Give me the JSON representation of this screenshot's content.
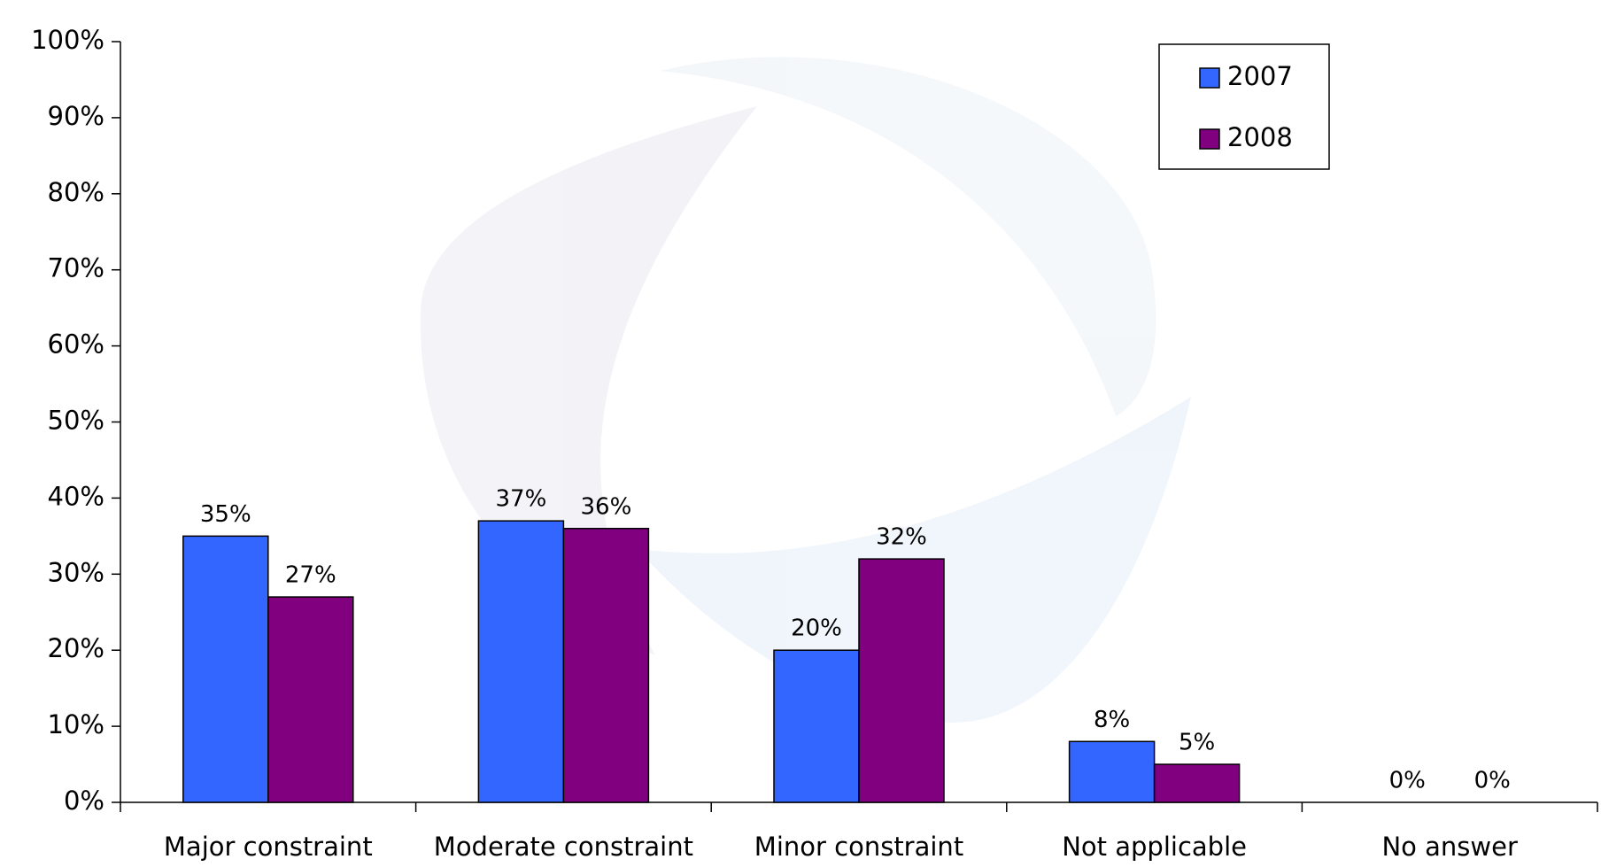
{
  "chart_data": {
    "type": "bar",
    "categories": [
      "Major constraint",
      "Moderate constraint",
      "Minor constraint",
      "Not applicable",
      "No answer"
    ],
    "series": [
      {
        "name": "2007",
        "color": "#3366ff",
        "values": [
          35,
          37,
          20,
          8,
          0
        ],
        "value_labels": [
          "35%",
          "37%",
          "20%",
          "8%",
          "0%"
        ]
      },
      {
        "name": "2008",
        "color": "#800080",
        "values": [
          27,
          36,
          32,
          5,
          0
        ],
        "value_labels": [
          "27%",
          "36%",
          "32%",
          "5%",
          "0%"
        ]
      }
    ],
    "ylim": [
      0,
      100
    ],
    "yticks": [
      {
        "value": 0,
        "label": "0%"
      },
      {
        "value": 10,
        "label": "10%"
      },
      {
        "value": 20,
        "label": "20%"
      },
      {
        "value": 30,
        "label": "30%"
      },
      {
        "value": 40,
        "label": "40%"
      },
      {
        "value": 50,
        "label": "50%"
      },
      {
        "value": 60,
        "label": "60%"
      },
      {
        "value": 70,
        "label": "70%"
      },
      {
        "value": 80,
        "label": "80%"
      },
      {
        "value": 90,
        "label": "90%"
      },
      {
        "value": 100,
        "label": "100%"
      }
    ],
    "legend": "top-right",
    "grid": false
  }
}
